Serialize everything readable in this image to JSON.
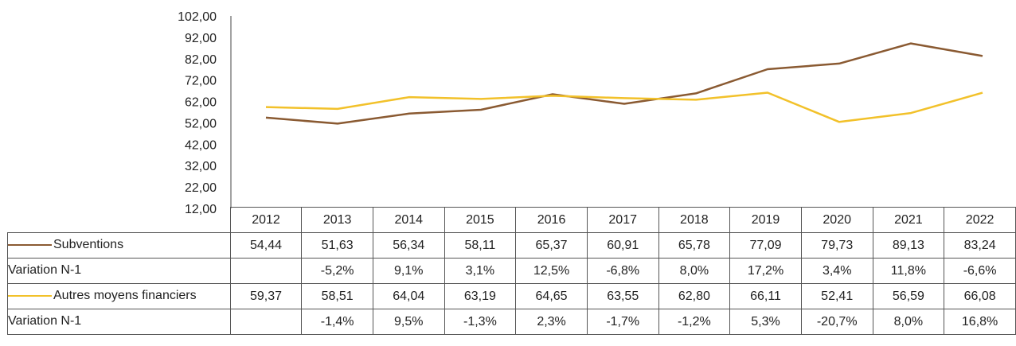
{
  "colors": {
    "subventions": "#8a5a32",
    "autres": "#f2c12a"
  },
  "chart_data": {
    "type": "line",
    "x": [
      "2012",
      "2013",
      "2014",
      "2015",
      "2016",
      "2017",
      "2018",
      "2019",
      "2020",
      "2021",
      "2022"
    ],
    "series": [
      {
        "name": "Subventions",
        "values": [
          54.44,
          51.63,
          56.34,
          58.11,
          65.37,
          60.91,
          65.78,
          77.09,
          79.73,
          89.13,
          83.24
        ]
      },
      {
        "name": "Autres moyens financiers",
        "values": [
          59.37,
          58.51,
          64.04,
          63.19,
          64.65,
          63.55,
          62.8,
          66.11,
          52.41,
          56.59,
          66.08
        ]
      }
    ],
    "ylim": [
      12,
      102
    ],
    "yticks": [
      "102,00",
      "92,00",
      "82,00",
      "72,00",
      "62,00",
      "52,00",
      "42,00",
      "32,00",
      "22,00",
      "12,00"
    ],
    "grid": false,
    "legend": "table rows"
  },
  "table": {
    "years": [
      "2012",
      "2013",
      "2014",
      "2015",
      "2016",
      "2017",
      "2018",
      "2019",
      "2020",
      "2021",
      "2022"
    ],
    "rows": [
      {
        "label": "Subventions",
        "legend": "subventions",
        "values": [
          "54,44",
          "51,63",
          "56,34",
          "58,11",
          "65,37",
          "60,91",
          "65,78",
          "77,09",
          "79,73",
          "89,13",
          "83,24"
        ]
      },
      {
        "label": "Variation N-1",
        "legend": "",
        "values": [
          "",
          "-5,2%",
          "9,1%",
          "3,1%",
          "12,5%",
          "-6,8%",
          "8,0%",
          "17,2%",
          "3,4%",
          "11,8%",
          "-6,6%"
        ]
      },
      {
        "label": "Autres moyens financiers",
        "legend": "autres",
        "values": [
          "59,37",
          "58,51",
          "64,04",
          "63,19",
          "64,65",
          "63,55",
          "62,80",
          "66,11",
          "52,41",
          "56,59",
          "66,08"
        ]
      },
      {
        "label": "Variation N-1",
        "legend": "",
        "values": [
          "",
          "-1,4%",
          "9,5%",
          "-1,3%",
          "2,3%",
          "-1,7%",
          "-1,2%",
          "5,3%",
          "-20,7%",
          "8,0%",
          "16,8%"
        ]
      }
    ]
  }
}
